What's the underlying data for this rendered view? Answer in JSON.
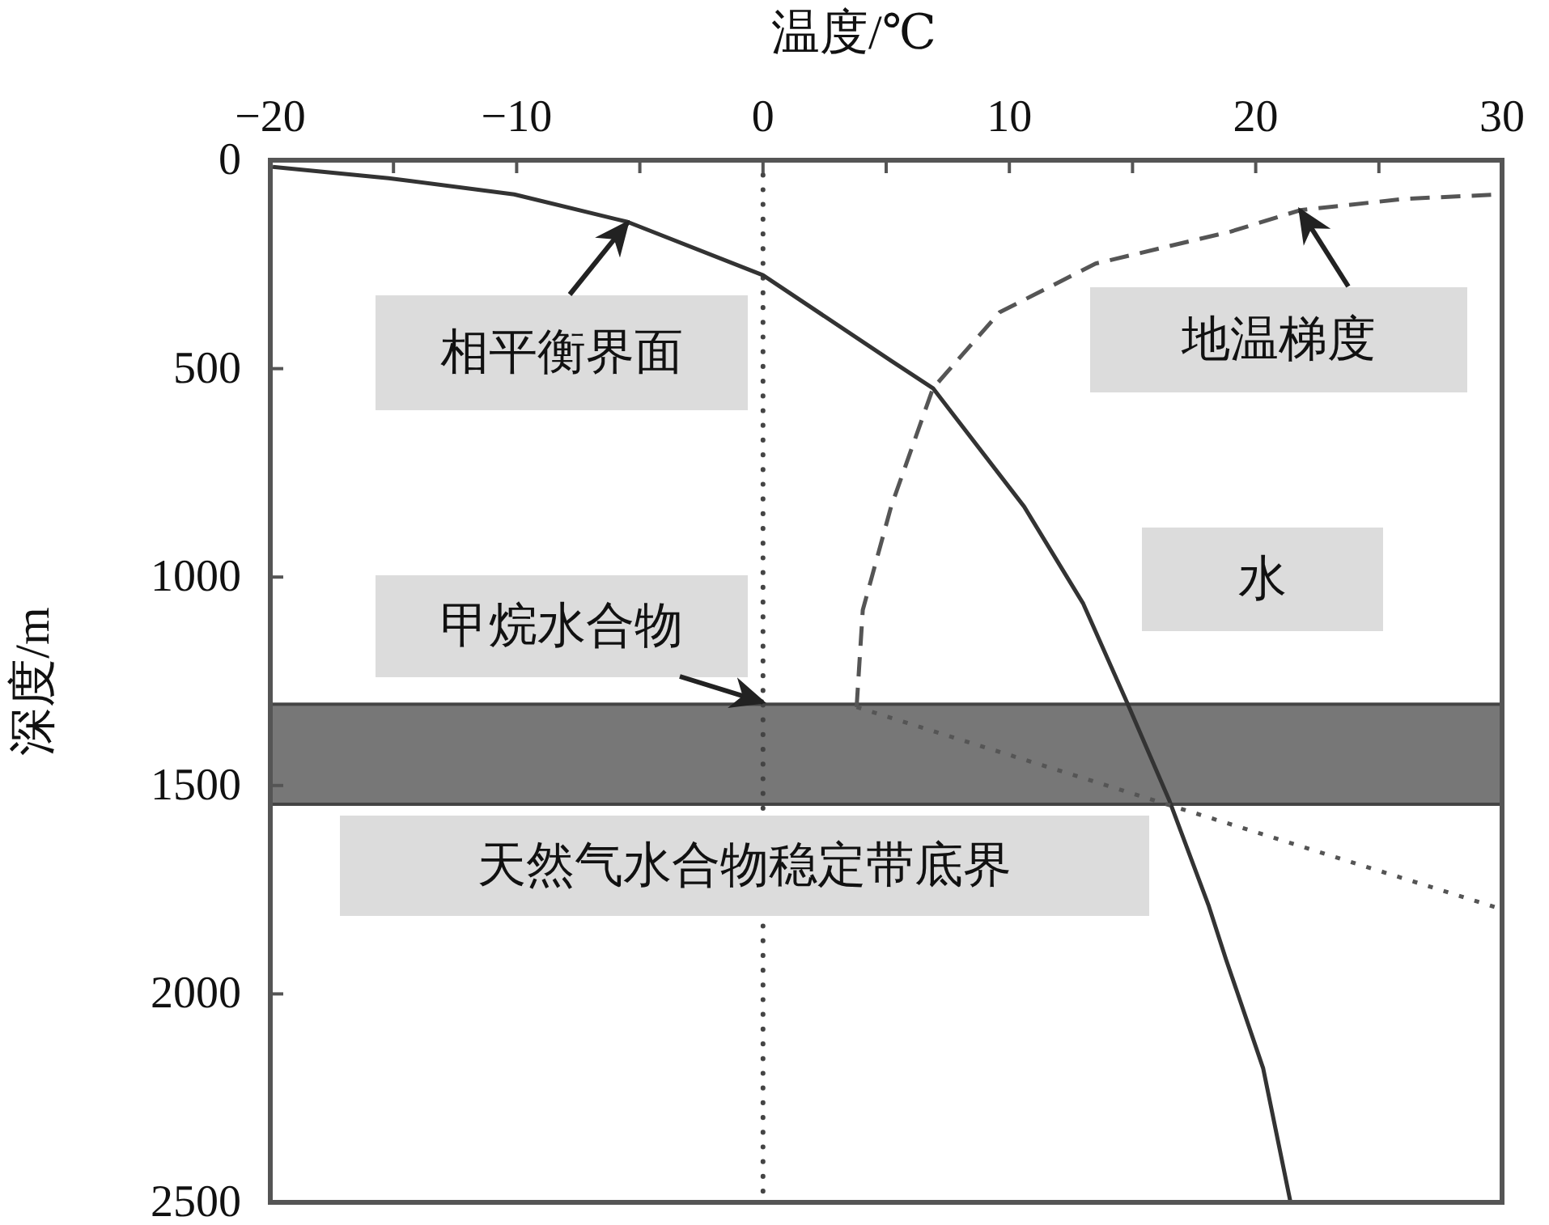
{
  "chart_data": {
    "type": "line",
    "xlabel": "温度/℃",
    "ylabel": "深度/m",
    "xlim": [
      -20,
      30
    ],
    "ylim": [
      2500,
      0
    ],
    "xticks": [
      -20,
      {
        "value": -15,
        "label": null
      },
      -10,
      {
        "value": -5,
        "label": null
      },
      0,
      {
        "value": 5,
        "label": null
      },
      10,
      {
        "value": 15,
        "label": null
      },
      20,
      {
        "value": 25,
        "label": null
      },
      30
    ],
    "yticks": [
      0,
      500,
      1000,
      1500,
      2000,
      2500
    ],
    "series": [
      {
        "color": "#333333",
        "line_style": "solid",
        "x": [
          -19.9,
          -15.2,
          -10.1,
          -5.5,
          0,
          5.2,
          6.9,
          10.6,
          13.0,
          14.8,
          16.5,
          18.1,
          18.8,
          20.3,
          21.4
        ],
        "values": [
          16,
          43,
          82,
          148,
          276,
          481,
          547,
          831,
          1064,
          1304,
          1537,
          1790,
          1918,
          2178,
          2496
        ]
      },
      {
        "color": "#555555",
        "line_style": "dashed",
        "x": [
          3.8,
          4.05,
          5.2,
          6.9,
          9.6,
          13.5,
          19.0,
          21.8,
          26.0,
          29.9
        ],
        "values": [
          1312,
          1079,
          831,
          547,
          365,
          248,
          171,
          120,
          93,
          82
        ]
      },
      {
        "color": "#555555",
        "line_style": "dotted",
        "x": [
          3.8,
          30
        ],
        "values": [
          1312,
          1797
        ]
      }
    ],
    "ref_lines": [
      {
        "axis": "x",
        "value": 0,
        "color": "#444444",
        "line_style": "dotted"
      }
    ],
    "bands": [
      {
        "axis": "y",
        "from": 1305,
        "to": 1545,
        "color": "#777777"
      }
    ],
    "annotations": [
      {
        "text": "相平衡界面",
        "x": -5.5,
        "y": 150
      },
      {
        "text": "地温梯度",
        "x": 21.8,
        "y": 120
      },
      "水",
      {
        "text": "甲烷水合物",
        "x": 0,
        "y": 1300
      },
      "天然气水合物稳定带底界"
    ]
  }
}
